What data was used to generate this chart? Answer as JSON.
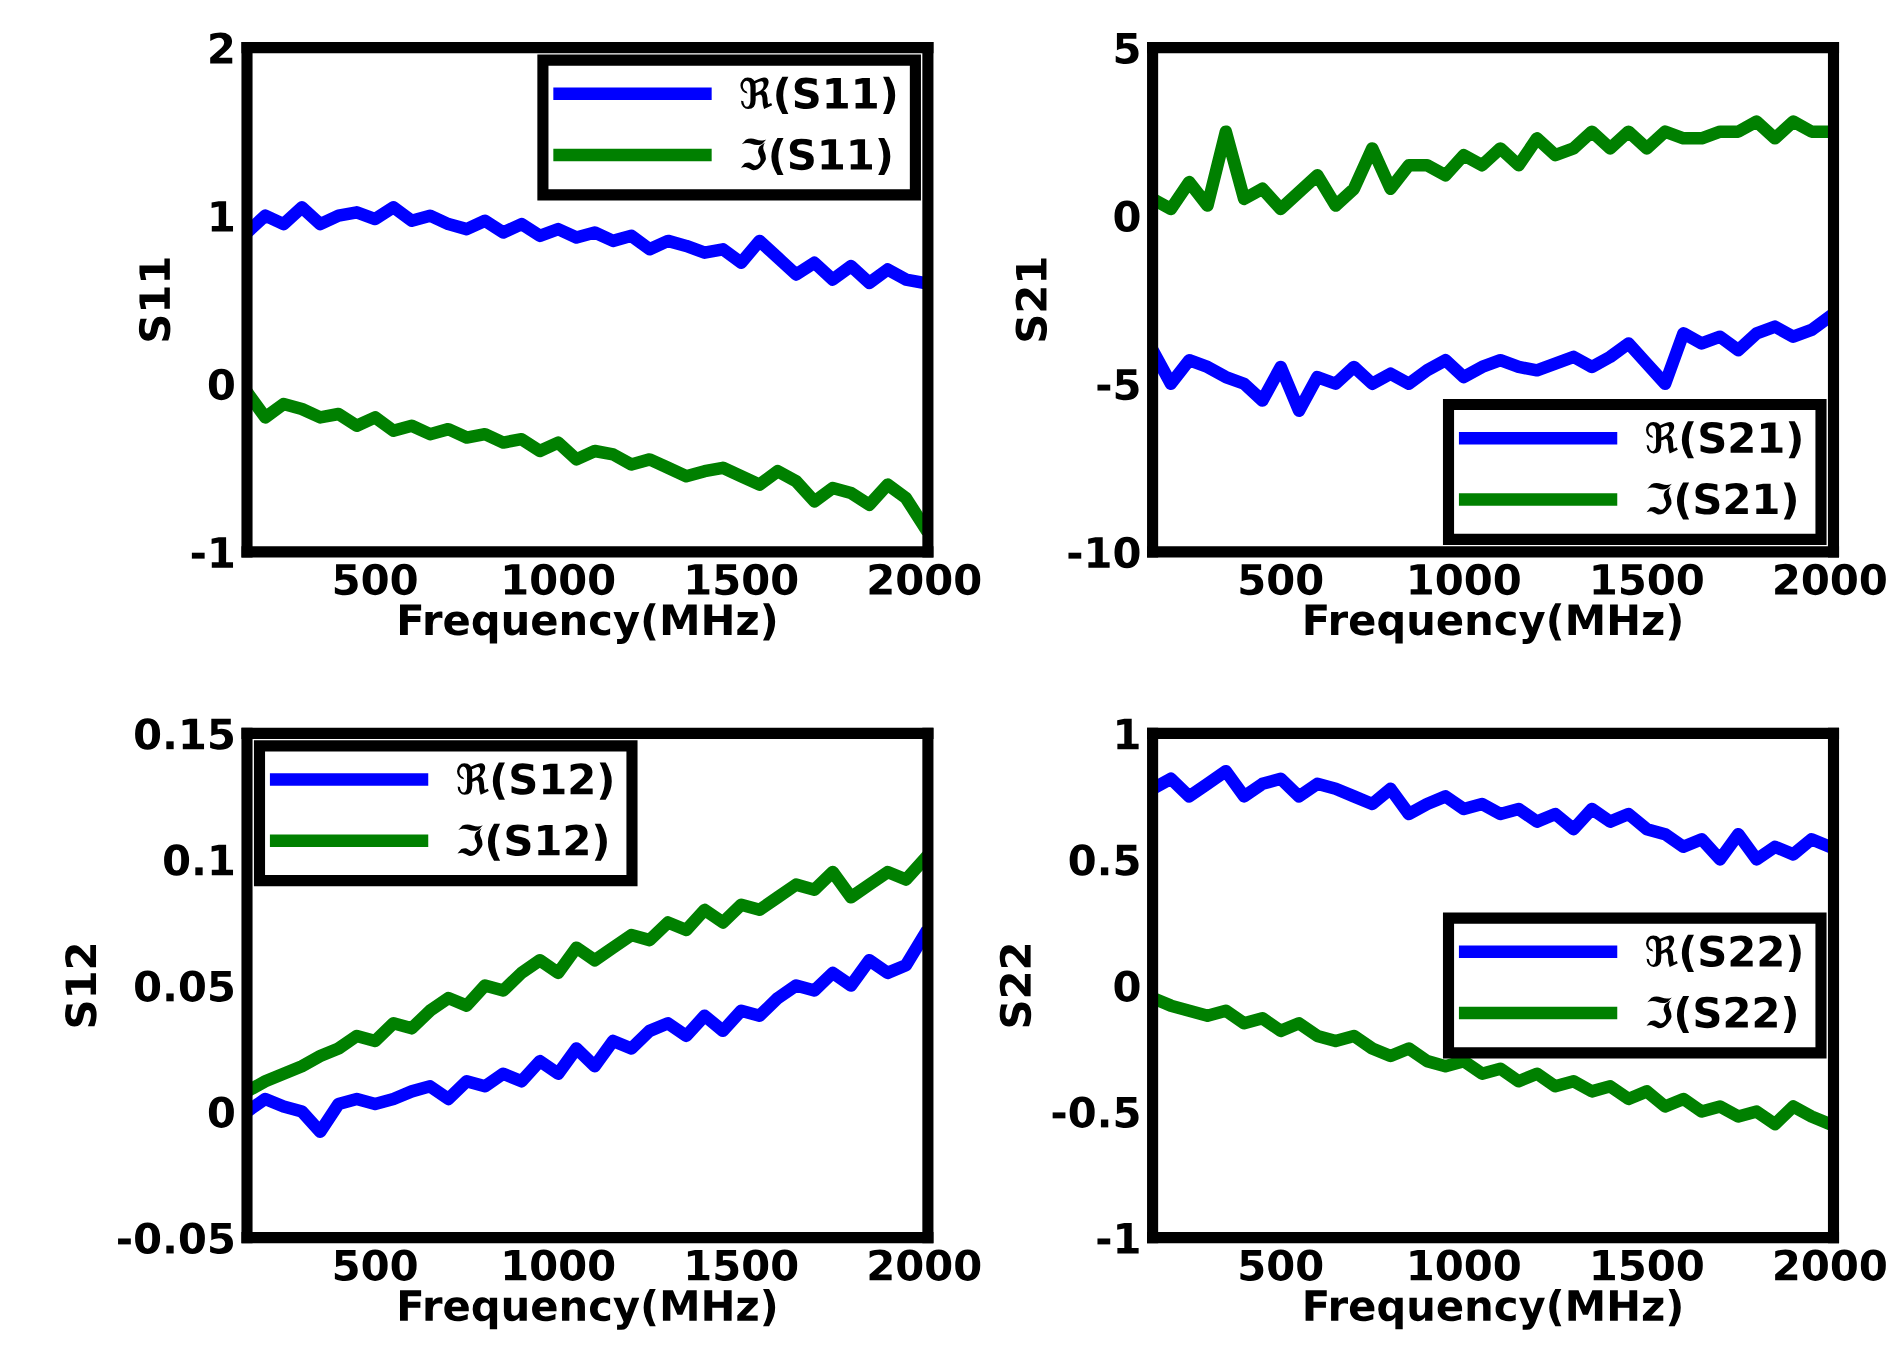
{
  "chart_data": [
    {
      "type": "line",
      "xlabel": "Frequency(MHz)",
      "ylabel": "S11",
      "x": [
        150,
        200,
        250,
        300,
        350,
        400,
        450,
        500,
        550,
        600,
        650,
        700,
        750,
        800,
        850,
        900,
        950,
        1000,
        1050,
        1100,
        1150,
        1200,
        1250,
        1300,
        1350,
        1400,
        1450,
        1500,
        1550,
        1600,
        1650,
        1700,
        1750,
        1800,
        1850,
        1900,
        1950,
        2000
      ],
      "xlim": [
        150,
        2010
      ],
      "xticks": [
        500,
        1000,
        1500,
        2000
      ],
      "ylim": [
        -1,
        2
      ],
      "yticks": [
        -1,
        0,
        1,
        2
      ],
      "legend": "top right",
      "grid": false,
      "line_style": "solid",
      "marker": "none",
      "series": [
        {
          "name": "ℜ(S11)",
          "color": "#0000ff",
          "values": [
            0.9,
            1.0,
            0.95,
            1.05,
            0.95,
            1.0,
            1.02,
            0.98,
            1.05,
            0.97,
            1.0,
            0.95,
            0.92,
            0.97,
            0.9,
            0.95,
            0.88,
            0.92,
            0.87,
            0.9,
            0.85,
            0.88,
            0.8,
            0.85,
            0.82,
            0.78,
            0.8,
            0.72,
            0.85,
            0.75,
            0.65,
            0.72,
            0.62,
            0.7,
            0.6,
            0.68,
            0.62,
            0.6
          ]
        },
        {
          "name": "ℑ(S11)",
          "color": "#008000",
          "values": [
            -0.05,
            -0.2,
            -0.12,
            -0.15,
            -0.2,
            -0.18,
            -0.25,
            -0.2,
            -0.28,
            -0.25,
            -0.3,
            -0.27,
            -0.32,
            -0.3,
            -0.35,
            -0.33,
            -0.4,
            -0.35,
            -0.45,
            -0.4,
            -0.42,
            -0.48,
            -0.45,
            -0.5,
            -0.55,
            -0.52,
            -0.5,
            -0.55,
            -0.6,
            -0.52,
            -0.58,
            -0.7,
            -0.62,
            -0.65,
            -0.72,
            -0.6,
            -0.68,
            -0.85
          ]
        }
      ]
    },
    {
      "type": "line",
      "xlabel": "Frequency(MHz)",
      "ylabel": "S21",
      "x": [
        150,
        200,
        250,
        300,
        350,
        400,
        450,
        500,
        550,
        600,
        650,
        700,
        750,
        800,
        850,
        900,
        950,
        1000,
        1050,
        1100,
        1150,
        1200,
        1250,
        1300,
        1350,
        1400,
        1450,
        1500,
        1550,
        1600,
        1650,
        1700,
        1750,
        1800,
        1850,
        1900,
        1950,
        2000
      ],
      "xlim": [
        150,
        2010
      ],
      "xticks": [
        500,
        1000,
        1500,
        2000
      ],
      "ylim": [
        -10,
        5
      ],
      "yticks": [
        -10,
        -5,
        0,
        5
      ],
      "legend": "bottom right",
      "grid": false,
      "line_style": "solid",
      "marker": "none",
      "series": [
        {
          "name": "ℜ(S21)",
          "color": "#0000ff",
          "values": [
            -4,
            -5,
            -4.3,
            -4.5,
            -4.8,
            -5,
            -5.5,
            -4.5,
            -5.8,
            -4.8,
            -5,
            -4.5,
            -5,
            -4.7,
            -5,
            -4.6,
            -4.3,
            -4.8,
            -4.5,
            -4.3,
            -4.5,
            -4.6,
            -4.4,
            -4.2,
            -4.5,
            -4.2,
            -3.8,
            -4.4,
            -5,
            -3.5,
            -3.8,
            -3.6,
            -4,
            -3.5,
            -3.3,
            -3.6,
            -3.4,
            -3
          ]
        },
        {
          "name": "ℑ(S21)",
          "color": "#008000",
          "values": [
            0.5,
            0.2,
            1,
            0.3,
            2.5,
            0.5,
            0.8,
            0.2,
            0.7,
            1.2,
            0.3,
            0.8,
            2,
            0.8,
            1.5,
            1.5,
            1.2,
            1.8,
            1.5,
            2,
            1.5,
            2.3,
            1.8,
            2,
            2.5,
            2,
            2.5,
            2,
            2.5,
            2.3,
            2.3,
            2.5,
            2.5,
            2.8,
            2.3,
            2.8,
            2.5,
            2.5
          ]
        }
      ]
    },
    {
      "type": "line",
      "xlabel": "Frequency(MHz)",
      "ylabel": "S12",
      "x": [
        150,
        200,
        250,
        300,
        350,
        400,
        450,
        500,
        550,
        600,
        650,
        700,
        750,
        800,
        850,
        900,
        950,
        1000,
        1050,
        1100,
        1150,
        1200,
        1250,
        1300,
        1350,
        1400,
        1450,
        1500,
        1550,
        1600,
        1650,
        1700,
        1750,
        1800,
        1850,
        1900,
        1950,
        2000
      ],
      "xlim": [
        150,
        2010
      ],
      "xticks": [
        500,
        1000,
        1500,
        2000
      ],
      "ylim": [
        -0.05,
        0.15
      ],
      "yticks": [
        -0.05,
        0,
        0.05,
        0.1,
        0.15
      ],
      "legend": "top left",
      "grid": false,
      "line_style": "solid",
      "marker": "none",
      "series": [
        {
          "name": "ℜ(S12)",
          "color": "#0000ff",
          "values": [
            0,
            0.005,
            0.002,
            0.0,
            -0.008,
            0.003,
            0.005,
            0.003,
            0.005,
            0.008,
            0.01,
            0.005,
            0.012,
            0.01,
            0.015,
            0.012,
            0.02,
            0.015,
            0.025,
            0.018,
            0.028,
            0.025,
            0.032,
            0.035,
            0.03,
            0.038,
            0.032,
            0.04,
            0.038,
            0.045,
            0.05,
            0.048,
            0.055,
            0.05,
            0.06,
            0.055,
            0.058,
            0.07
          ]
        },
        {
          "name": "ℑ(S12)",
          "color": "#008000",
          "values": [
            0.008,
            0.012,
            0.015,
            0.018,
            0.022,
            0.025,
            0.03,
            0.028,
            0.035,
            0.033,
            0.04,
            0.045,
            0.042,
            0.05,
            0.048,
            0.055,
            0.06,
            0.055,
            0.065,
            0.06,
            0.065,
            0.07,
            0.068,
            0.075,
            0.072,
            0.08,
            0.075,
            0.082,
            0.08,
            0.085,
            0.09,
            0.088,
            0.095,
            0.085,
            0.09,
            0.095,
            0.092,
            0.1
          ]
        }
      ]
    },
    {
      "type": "line",
      "xlabel": "Frequency(MHz)",
      "ylabel": "S22",
      "x": [
        150,
        200,
        250,
        300,
        350,
        400,
        450,
        500,
        550,
        600,
        650,
        700,
        750,
        800,
        850,
        900,
        950,
        1000,
        1050,
        1100,
        1150,
        1200,
        1250,
        1300,
        1350,
        1400,
        1450,
        1500,
        1550,
        1600,
        1650,
        1700,
        1750,
        1800,
        1850,
        1900,
        1950,
        2000
      ],
      "xlim": [
        150,
        2010
      ],
      "xticks": [
        500,
        1000,
        1500,
        2000
      ],
      "ylim": [
        -1,
        1
      ],
      "yticks": [
        -1,
        -0.5,
        0,
        0.5,
        1
      ],
      "legend": "center right",
      "grid": false,
      "line_style": "solid",
      "marker": "none",
      "series": [
        {
          "name": "ℜ(S22)",
          "color": "#0000ff",
          "values": [
            0.78,
            0.82,
            0.75,
            0.8,
            0.85,
            0.75,
            0.8,
            0.82,
            0.75,
            0.8,
            0.78,
            0.75,
            0.72,
            0.78,
            0.68,
            0.72,
            0.75,
            0.7,
            0.72,
            0.68,
            0.7,
            0.65,
            0.68,
            0.62,
            0.7,
            0.65,
            0.68,
            0.62,
            0.6,
            0.55,
            0.58,
            0.5,
            0.6,
            0.5,
            0.55,
            0.52,
            0.58,
            0.55
          ]
        },
        {
          "name": "ℑ(S22)",
          "color": "#008000",
          "values": [
            -0.05,
            -0.08,
            -0.1,
            -0.12,
            -0.1,
            -0.15,
            -0.13,
            -0.18,
            -0.15,
            -0.2,
            -0.22,
            -0.2,
            -0.25,
            -0.28,
            -0.25,
            -0.3,
            -0.32,
            -0.3,
            -0.35,
            -0.33,
            -0.38,
            -0.35,
            -0.4,
            -0.38,
            -0.42,
            -0.4,
            -0.45,
            -0.42,
            -0.48,
            -0.45,
            -0.5,
            -0.48,
            -0.52,
            -0.5,
            -0.55,
            -0.48,
            -0.52,
            -0.55
          ]
        }
      ]
    }
  ]
}
